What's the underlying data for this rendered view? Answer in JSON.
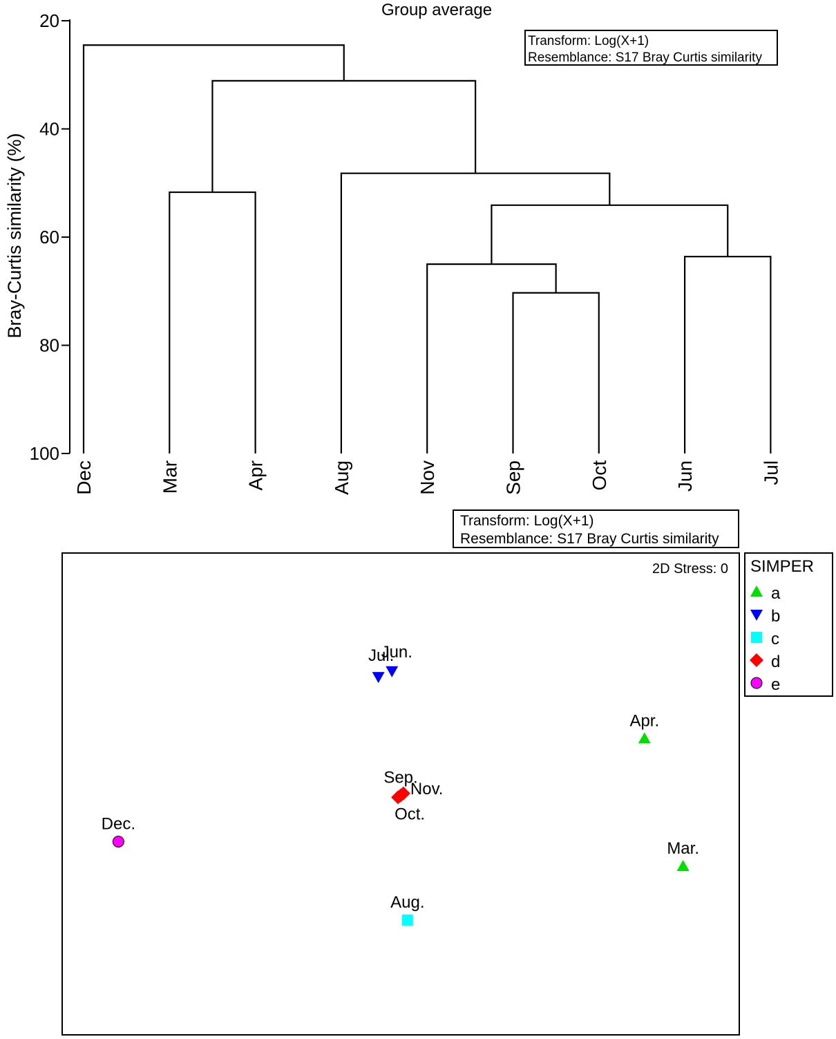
{
  "chart_data": [
    {
      "type": "dendrogram",
      "title": "Group average",
      "ylabel": "Bray-Curtis similarity (%)",
      "ylim": [
        20,
        100
      ],
      "yticks": [
        "20",
        "40",
        "60",
        "80",
        "100"
      ],
      "grid": false,
      "info_box": {
        "transform": "Transform: Log(X+1)",
        "resemblance": "Resemblance: S17 Bray Curtis similarity"
      },
      "leaves": [
        "Dec",
        "Mar",
        "Apr",
        "Aug",
        "Nov",
        "Sep",
        "Oct",
        "Jun",
        "Jul"
      ],
      "merges": [
        {
          "left": "Sep",
          "right": "Oct",
          "similarity": 70.3
        },
        {
          "left": "Nov",
          "right": "Sep+Oct",
          "similarity": 65.0
        },
        {
          "left": "Jun",
          "right": "Jul",
          "similarity": 63.6
        },
        {
          "left": "Nov+Sep+Oct",
          "right": "Jun+Jul",
          "similarity": 54.1
        },
        {
          "left": "Mar",
          "right": "Apr",
          "similarity": 51.7
        },
        {
          "left": "Aug",
          "right": "Nov+Sep+Oct+Jun+Jul",
          "similarity": 48.2
        },
        {
          "left": "Mar+Apr",
          "right": "Aug+Nov+Sep+Oct+Jun+Jul",
          "similarity": 31.1
        },
        {
          "left": "Dec",
          "right": "all others",
          "similarity": 24.5
        }
      ]
    },
    {
      "type": "scatter",
      "subtype": "nMDS ordination",
      "stress_label": "2D Stress: 0",
      "info_box": {
        "transform": "Transform: Log(X+1)",
        "resemblance": "Resemblance: S17 Bray Curtis similarity"
      },
      "legend": {
        "title": "SIMPER",
        "placement": "outside-right-top",
        "entries": [
          {
            "label": "a",
            "marker": "triangle-up",
            "color": "#00e000"
          },
          {
            "label": "b",
            "marker": "triangle-down",
            "color": "#0000ff"
          },
          {
            "label": "c",
            "marker": "square",
            "color": "#00ffff"
          },
          {
            "label": "d",
            "marker": "diamond",
            "color": "#ff0000"
          },
          {
            "label": "e",
            "marker": "circle",
            "color": "#ff00ff"
          }
        ]
      },
      "xlim": [
        0,
        100
      ],
      "ylim": [
        0,
        100
      ],
      "points": [
        {
          "label": "Jul.",
          "group": "b",
          "x": 46.7,
          "y": 74.3,
          "label_pos": "above-left"
        },
        {
          "label": "Jun.",
          "group": "b",
          "x": 48.7,
          "y": 75.5,
          "label_pos": "above-right"
        },
        {
          "label": "Apr.",
          "group": "a",
          "x": 86.0,
          "y": 61.5,
          "label_pos": "above"
        },
        {
          "label": "Sep.",
          "group": "d",
          "x": 50.0,
          "y": 49.7,
          "label_pos": "above"
        },
        {
          "label": "Nov.",
          "group": "d",
          "x": 50.4,
          "y": 50.1,
          "label_pos": "right"
        },
        {
          "label": "Oct.",
          "group": "d",
          "x": 49.6,
          "y": 49.3,
          "label_pos": "below"
        },
        {
          "label": "Dec.",
          "group": "e",
          "x": 8.3,
          "y": 40.1,
          "label_pos": "above"
        },
        {
          "label": "Mar.",
          "group": "a",
          "x": 91.7,
          "y": 35.0,
          "label_pos": "above"
        },
        {
          "label": "Aug.",
          "group": "c",
          "x": 51.0,
          "y": 23.8,
          "label_pos": "above"
        }
      ]
    }
  ]
}
